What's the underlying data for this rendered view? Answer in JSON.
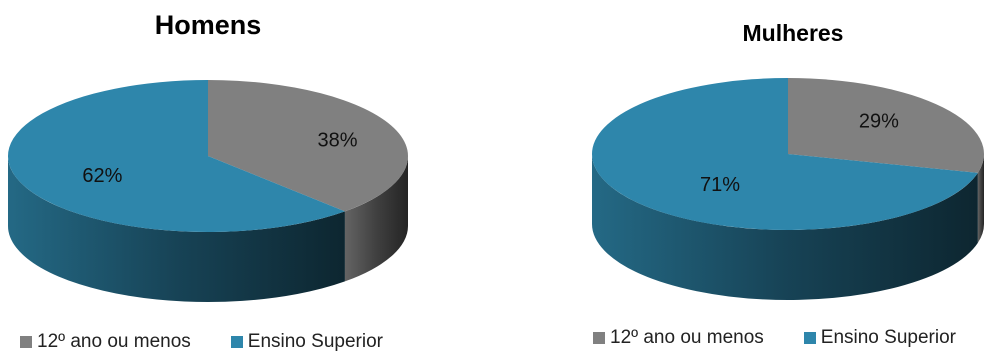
{
  "chart_data": [
    {
      "type": "pie",
      "title": "Homens",
      "categories": [
        "12º ano ou menos",
        "Ensino Superior"
      ],
      "values": [
        38,
        62
      ],
      "data_labels": [
        "38%",
        "62%"
      ],
      "colors": [
        "#808080",
        "#2e86ab"
      ],
      "legend_position": "bottom",
      "style": "3d"
    },
    {
      "type": "pie",
      "title": "Mulheres",
      "categories": [
        "12º ano ou menos",
        "Ensino Superior"
      ],
      "values": [
        29,
        71
      ],
      "data_labels": [
        "29%",
        "71%"
      ],
      "colors": [
        "#808080",
        "#2e86ab"
      ],
      "legend_position": "bottom",
      "style": "3d"
    }
  ]
}
